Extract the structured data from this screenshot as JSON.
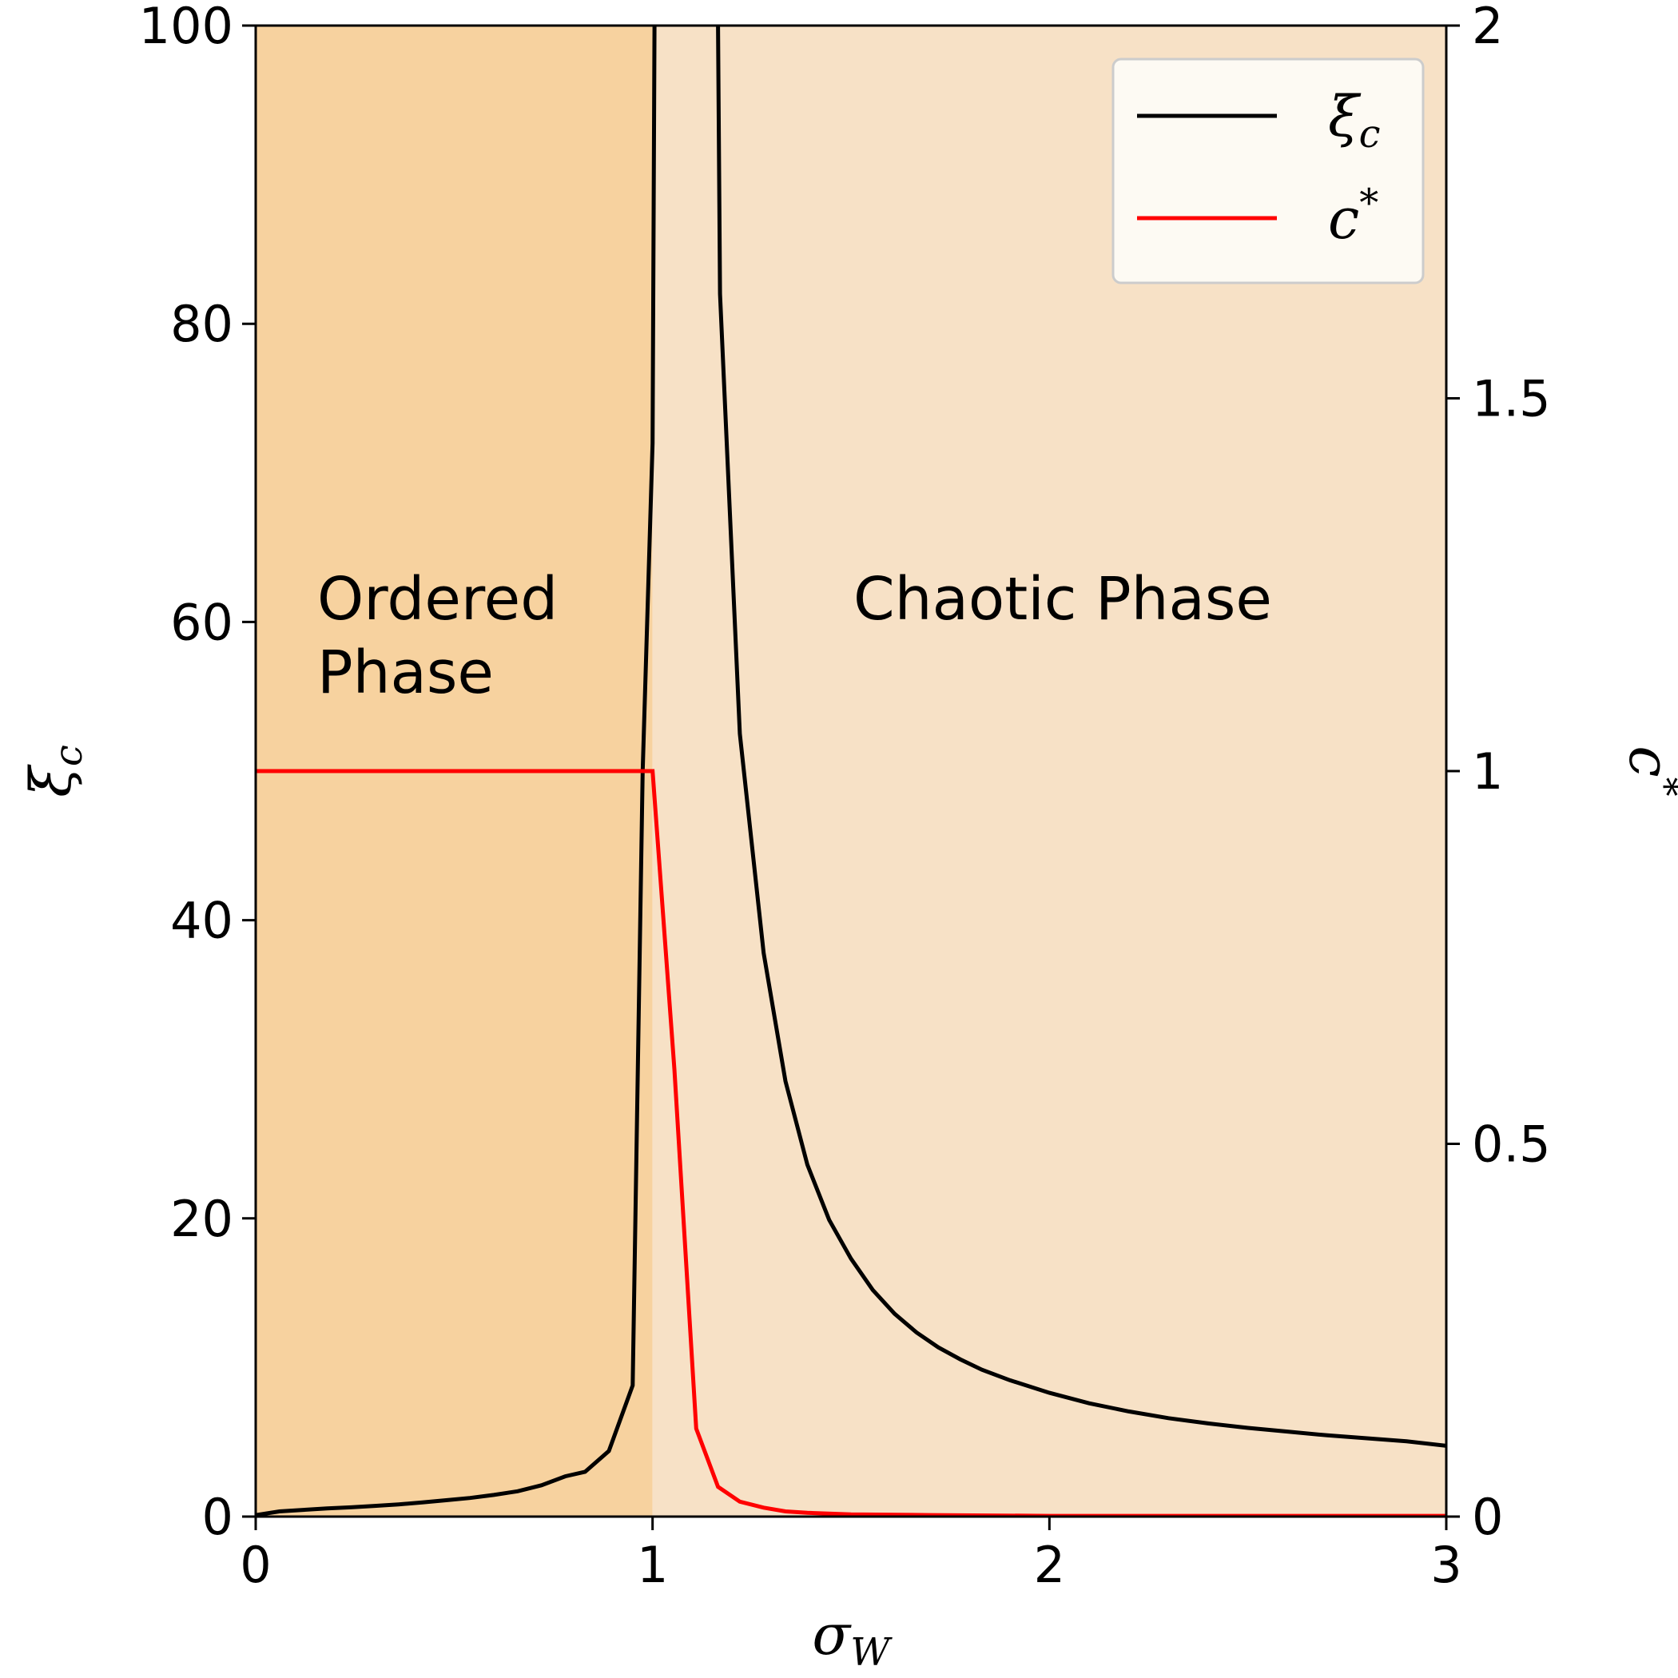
{
  "chart_data": {
    "type": "line",
    "xlabel": "σ",
    "xlabel_sub": "W",
    "ylabel_left": "ξ",
    "ylabel_left_sub": "c",
    "ylabel_right": "c",
    "ylabel_right_sup": "*",
    "xlim": [
      0,
      3
    ],
    "ylim_left": [
      0,
      100
    ],
    "ylim_right": [
      0,
      2
    ],
    "x_ticks": [
      "0",
      "1",
      "2",
      "3"
    ],
    "y_left_ticks": [
      "0",
      "20",
      "40",
      "60",
      "80",
      "100"
    ],
    "y_right_ticks": [
      "0",
      "0.5",
      "1",
      "1.5",
      "2"
    ],
    "grid": false,
    "legend_position": "top-right",
    "regions": [
      {
        "label_lines": [
          "Ordered",
          "Phase"
        ],
        "x_range": [
          0,
          1
        ],
        "color": "#f7d29f"
      },
      {
        "label_lines": [
          "Chaotic Phase"
        ],
        "x_range": [
          1,
          3
        ],
        "color": "#f7e1c6"
      }
    ],
    "series": [
      {
        "name": "ξ",
        "name_sub": "c",
        "axis": "left",
        "color": "#000000",
        "points": [
          [
            0.0,
            0.1
          ],
          [
            0.06,
            0.35
          ],
          [
            0.12,
            0.45
          ],
          [
            0.18,
            0.55
          ],
          [
            0.24,
            0.62
          ],
          [
            0.3,
            0.72
          ],
          [
            0.36,
            0.82
          ],
          [
            0.42,
            0.95
          ],
          [
            0.48,
            1.1
          ],
          [
            0.54,
            1.25
          ],
          [
            0.6,
            1.45
          ],
          [
            0.66,
            1.7
          ],
          [
            0.72,
            2.1
          ],
          [
            0.78,
            2.7
          ],
          [
            0.83,
            3.0
          ],
          [
            0.89,
            4.4
          ],
          [
            0.95,
            8.8
          ],
          [
            0.975,
            50
          ],
          [
            1.0,
            72
          ],
          [
            1.005,
            100
          ]
        ],
        "points_b": [
          [
            1.165,
            100
          ],
          [
            1.17,
            82
          ],
          [
            1.22,
            52.5
          ],
          [
            1.28,
            37.8
          ],
          [
            1.335,
            29.2
          ],
          [
            1.39,
            23.6
          ],
          [
            1.445,
            19.9
          ],
          [
            1.5,
            17.3
          ],
          [
            1.555,
            15.2
          ],
          [
            1.61,
            13.6
          ],
          [
            1.665,
            12.35
          ],
          [
            1.72,
            11.35
          ],
          [
            1.775,
            10.55
          ],
          [
            1.83,
            9.85
          ],
          [
            1.9,
            9.15
          ],
          [
            2.0,
            8.3
          ],
          [
            2.1,
            7.6
          ],
          [
            2.2,
            7.05
          ],
          [
            2.3,
            6.6
          ],
          [
            2.4,
            6.25
          ],
          [
            2.5,
            5.95
          ],
          [
            2.6,
            5.7
          ],
          [
            2.7,
            5.45
          ],
          [
            2.8,
            5.25
          ],
          [
            2.9,
            5.05
          ],
          [
            3.0,
            4.75
          ]
        ]
      },
      {
        "name": "c",
        "name_sup": "*",
        "axis": "right",
        "color": "#ff0000",
        "points": [
          [
            0.0,
            1.0
          ],
          [
            0.5,
            1.0
          ],
          [
            0.995,
            1.0
          ],
          [
            1.0,
            1.0
          ],
          [
            1.055,
            0.6
          ],
          [
            1.11,
            0.118
          ],
          [
            1.165,
            0.04
          ],
          [
            1.22,
            0.02
          ],
          [
            1.28,
            0.012
          ],
          [
            1.335,
            0.007
          ],
          [
            1.39,
            0.005
          ],
          [
            1.5,
            0.003
          ],
          [
            1.7,
            0.002
          ],
          [
            2.0,
            0.001
          ],
          [
            2.5,
            0.001
          ],
          [
            3.0,
            0.001
          ]
        ]
      }
    ]
  }
}
